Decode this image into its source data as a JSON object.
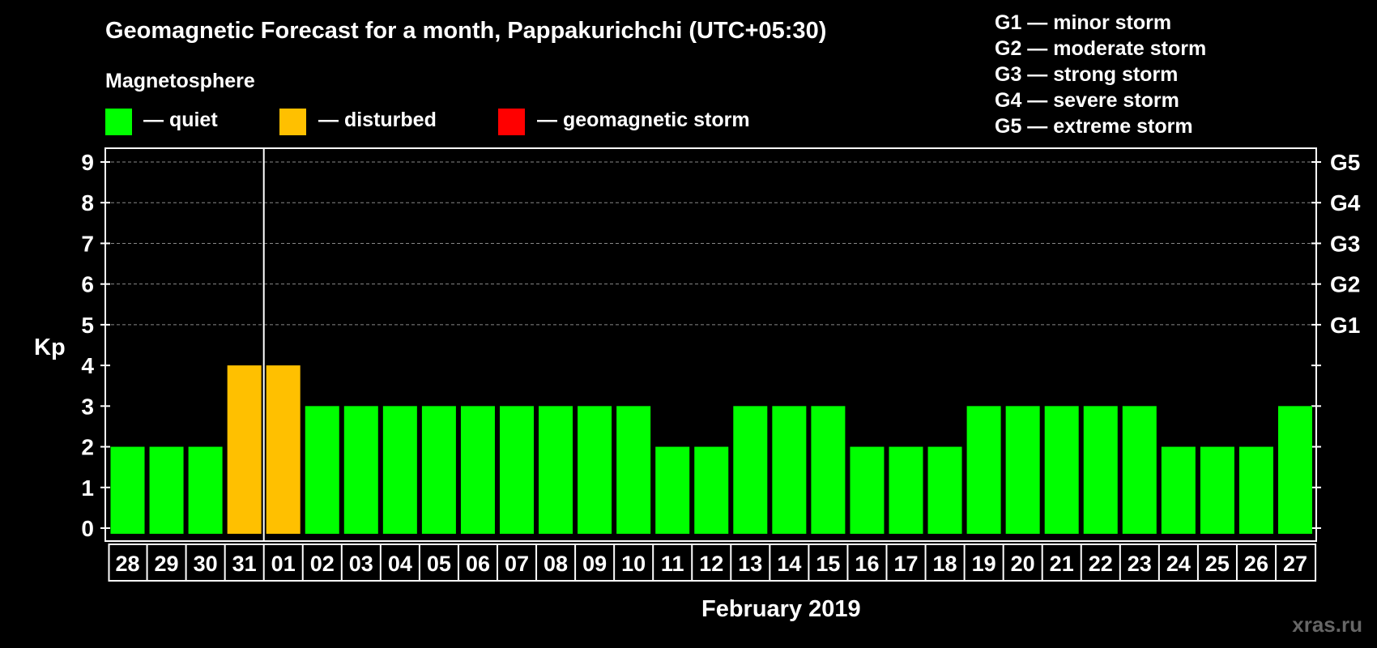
{
  "title": "Geomagnetic Forecast for a month, Pappakurichchi (UTC+05:30)",
  "magnetosphere_label": "Magnetosphere",
  "legend": [
    {
      "label": "— quiet",
      "color": "#00ff00"
    },
    {
      "label": "— disturbed",
      "color": "#ffc000"
    },
    {
      "label": "— geomagnetic storm",
      "color": "#ff0000"
    }
  ],
  "storm_scale": [
    "G1 — minor storm",
    "G2 — moderate storm",
    "G3 — strong storm",
    "G4 — severe storm",
    "G5 — extreme storm"
  ],
  "watermark": "xras.ru",
  "chart_data": {
    "type": "bar",
    "title": "Geomagnetic Forecast for a month, Pappakurichchi (UTC+05:30)",
    "xlabel": "February 2019",
    "ylabel": "Kp",
    "ylim": [
      0,
      9
    ],
    "yticks": [
      0,
      1,
      2,
      3,
      4,
      5,
      6,
      7,
      8,
      9
    ],
    "right_axis_labels": [
      {
        "kp": 5,
        "label": "G1"
      },
      {
        "kp": 6,
        "label": "G2"
      },
      {
        "kp": 7,
        "label": "G3"
      },
      {
        "kp": 8,
        "label": "G4"
      },
      {
        "kp": 9,
        "label": "G5"
      }
    ],
    "grid": true,
    "month_separator_after": "31",
    "categories": [
      "28",
      "29",
      "30",
      "31",
      "01",
      "02",
      "03",
      "04",
      "05",
      "06",
      "07",
      "08",
      "09",
      "10",
      "11",
      "12",
      "13",
      "14",
      "15",
      "16",
      "17",
      "18",
      "19",
      "20",
      "21",
      "22",
      "23",
      "24",
      "25",
      "26",
      "27"
    ],
    "values": [
      2,
      2,
      2,
      4,
      4,
      3,
      3,
      3,
      3,
      3,
      3,
      3,
      3,
      3,
      2,
      2,
      3,
      3,
      3,
      2,
      2,
      2,
      3,
      3,
      3,
      3,
      3,
      2,
      2,
      2,
      3
    ],
    "colors": {
      "quiet": "#00ff00",
      "disturbed": "#ffc000",
      "storm": "#ff0000"
    }
  }
}
